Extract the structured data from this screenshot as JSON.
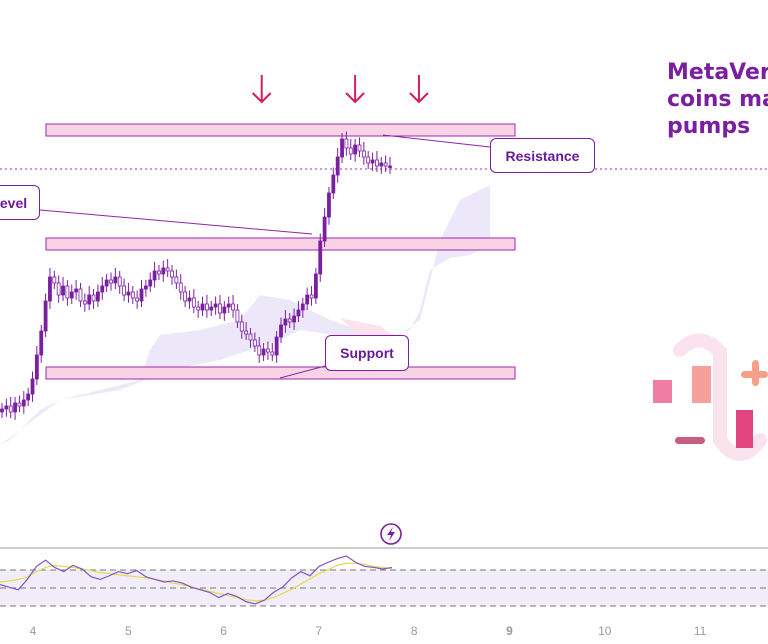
{
  "headline": {
    "lines": [
      "MetaVer",
      "coins ma",
      "pumps"
    ],
    "color": "#7b1fa2"
  },
  "annotations": {
    "resistance": "Resistance",
    "support": "Support",
    "level": "evel"
  },
  "chart_data": {
    "type": "candlestick",
    "xlabel": "",
    "ylabel": "",
    "x_ticks": [
      "4",
      "5",
      "6",
      "7",
      "8",
      "9",
      "10",
      "11"
    ],
    "bold_tick": "9",
    "levels": [
      {
        "name": "resistance-zone",
        "from": 0.93,
        "to": 0.97
      },
      {
        "name": "breakout-level-zone",
        "from": 0.55,
        "to": 0.59
      },
      {
        "name": "support-zone",
        "from": 0.12,
        "to": 0.16
      }
    ],
    "arrows_at_x": [
      6.4,
      7.38,
      8.05
    ],
    "current_price": 0.82,
    "ohlc_close": [
      0.02,
      0.03,
      0.01,
      0.04,
      0.03,
      0.05,
      0.07,
      0.12,
      0.2,
      0.28,
      0.38,
      0.46,
      0.44,
      0.4,
      0.43,
      0.39,
      0.41,
      0.42,
      0.38,
      0.37,
      0.4,
      0.38,
      0.41,
      0.43,
      0.45,
      0.44,
      0.46,
      0.43,
      0.4,
      0.41,
      0.39,
      0.38,
      0.42,
      0.43,
      0.45,
      0.48,
      0.47,
      0.49,
      0.48,
      0.46,
      0.44,
      0.41,
      0.38,
      0.39,
      0.36,
      0.35,
      0.37,
      0.35,
      0.36,
      0.37,
      0.34,
      0.36,
      0.37,
      0.35,
      0.31,
      0.28,
      0.27,
      0.25,
      0.23,
      0.2,
      0.22,
      0.21,
      0.2,
      0.26,
      0.3,
      0.32,
      0.31,
      0.33,
      0.35,
      0.37,
      0.4,
      0.39,
      0.47,
      0.58,
      0.66,
      0.74,
      0.8,
      0.86,
      0.92,
      0.89,
      0.87,
      0.9,
      0.88,
      0.86,
      0.84,
      0.85,
      0.83,
      0.84,
      0.83,
      0.83
    ],
    "oscillator": {
      "series": [
        {
          "values": [
            0.45,
            0.4,
            0.35,
            0.55,
            0.8,
            0.92,
            0.78,
            0.7,
            0.82,
            0.75,
            0.6,
            0.55,
            0.62,
            0.7,
            0.66,
            0.72,
            0.6,
            0.55,
            0.5,
            0.52,
            0.48,
            0.4,
            0.35,
            0.3,
            0.2,
            0.28,
            0.22,
            0.12,
            0.08,
            0.15,
            0.3,
            0.4,
            0.58,
            0.7,
            0.62,
            0.8,
            0.88,
            0.95,
            1.0,
            0.88,
            0.8,
            0.78,
            0.75,
            0.78
          ]
        },
        {
          "values": [
            0.5,
            0.52,
            0.55,
            0.6,
            0.7,
            0.78,
            0.82,
            0.8,
            0.78,
            0.75,
            0.72,
            0.68,
            0.66,
            0.64,
            0.62,
            0.6,
            0.58,
            0.55,
            0.52,
            0.48,
            0.45,
            0.4,
            0.36,
            0.32,
            0.28,
            0.24,
            0.2,
            0.16,
            0.14,
            0.15,
            0.2,
            0.28,
            0.36,
            0.46,
            0.56,
            0.66,
            0.74,
            0.82,
            0.86,
            0.86,
            0.84,
            0.8,
            0.78,
            0.76
          ]
        }
      ]
    },
    "colors": {
      "candle": "#7b1fa2",
      "zone_fill": "#f8d3e6",
      "zone_stroke": "#9c27b0",
      "cloud": "#ece8fa",
      "ma": "#e6d94a",
      "osc": "#7e57c2",
      "arrow": "#d81b60"
    }
  }
}
